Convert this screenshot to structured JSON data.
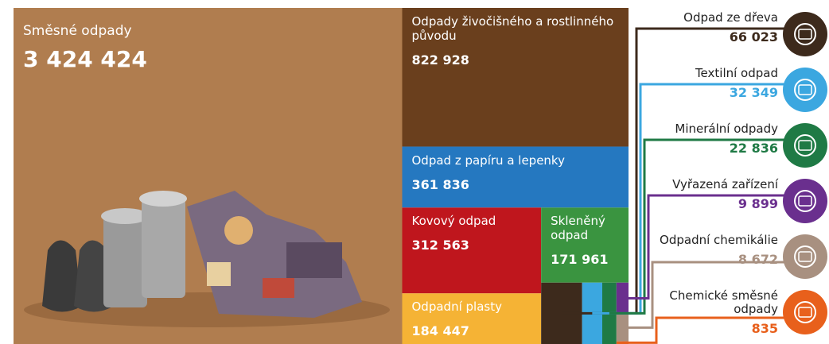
{
  "chart_data": {
    "type": "treemap",
    "categories": [
      "Směsné odpady",
      "Odpady živočišného a rostlinného původu",
      "Odpad z papíru a lepenky",
      "Kovový odpad",
      "Skleněný odpad",
      "Odpadní plasty",
      "Odpad ze dřeva",
      "Textilní odpad",
      "Minerální odpady",
      "Vyřazená zařízení",
      "Odpadní chemikálie",
      "Chemické směsné odpady"
    ],
    "values": [
      3424424,
      822928,
      361836,
      312563,
      171961,
      184447,
      66023,
      32349,
      22836,
      9899,
      8672,
      835
    ],
    "value_labels": [
      "3 424 424",
      "822 928",
      "361 836",
      "312 563",
      "171 961",
      "184 447",
      "66 023",
      "32 349",
      "22 836",
      "9 899",
      "8 672",
      "835"
    ],
    "colors": [
      "#b07d4f",
      "#6a3f1d",
      "#2578c0",
      "#bf161d",
      "#3a9440",
      "#f5b335",
      "#3d2a1c",
      "#3ba7e0",
      "#1f7a45",
      "#6a2f8e",
      "#a89080",
      "#e8601c"
    ]
  }
}
